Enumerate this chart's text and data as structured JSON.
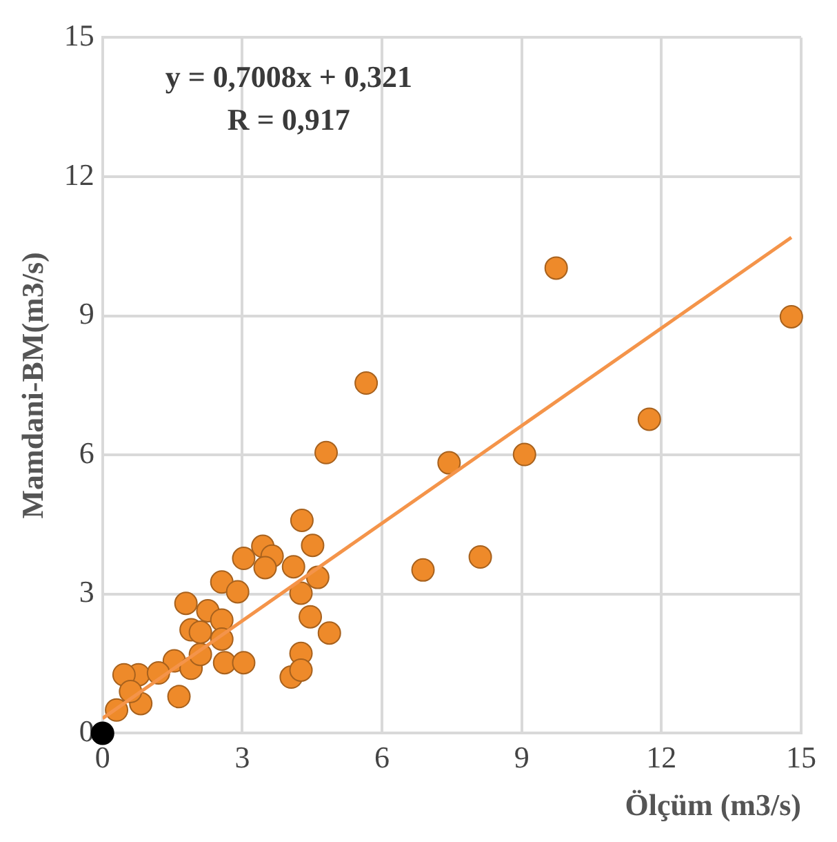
{
  "chart_data": {
    "type": "scatter",
    "xlabel": "Ölçüm (m3/s)",
    "ylabel": "Mamdani-BM(m3/s)",
    "annotations": [
      "y = 0,7008x + 0,321",
      "R = 0,917"
    ],
    "xlim": [
      0,
      15
    ],
    "ylim": [
      0,
      15
    ],
    "xticks": [
      0,
      3,
      6,
      9,
      12,
      15
    ],
    "yticks": [
      0,
      3,
      6,
      9,
      12,
      15
    ],
    "grid": true,
    "legend": false,
    "marker": "circle",
    "series": [
      {
        "type": "scatter",
        "color": "#ee8a2a",
        "x": [
          9.74,
          14.79,
          11.74,
          9.06,
          7.44,
          5.66,
          4.8,
          6.88,
          8.11,
          4.28,
          4.51,
          3.44,
          3.03,
          3.64,
          3.49,
          4.1,
          4.62,
          4.26,
          4.46,
          4.87,
          4.26,
          4.05,
          4.26,
          2.56,
          2.9,
          1.79,
          2.26,
          2.56,
          1.9,
          2.1,
          2.56,
          2.62,
          3.03,
          1.64,
          1.54,
          0.77,
          0.46,
          0.82,
          0.3,
          0.6,
          1.2,
          1.9,
          2.1
        ],
        "values": [
          10.03,
          8.98,
          6.77,
          6.01,
          5.83,
          7.55,
          6.05,
          3.52,
          3.8,
          4.59,
          4.05,
          4.03,
          3.77,
          3.82,
          3.57,
          3.59,
          3.36,
          3.02,
          2.51,
          2.16,
          1.72,
          1.21,
          1.36,
          3.26,
          3.05,
          2.8,
          2.64,
          2.44,
          2.23,
          2.18,
          2.03,
          1.52,
          1.52,
          0.79,
          1.56,
          1.26,
          1.26,
          0.64,
          0.5,
          0.9,
          1.3,
          1.4,
          1.7
        ]
      },
      {
        "type": "scatter",
        "color": "#000000",
        "x": [
          0
        ],
        "values": [
          0
        ]
      },
      {
        "type": "line",
        "color": "#f4944a",
        "marker": "none",
        "line_style": "solid",
        "x": [
          0,
          14.79
        ],
        "values": [
          0.321,
          10.69
        ]
      }
    ]
  }
}
